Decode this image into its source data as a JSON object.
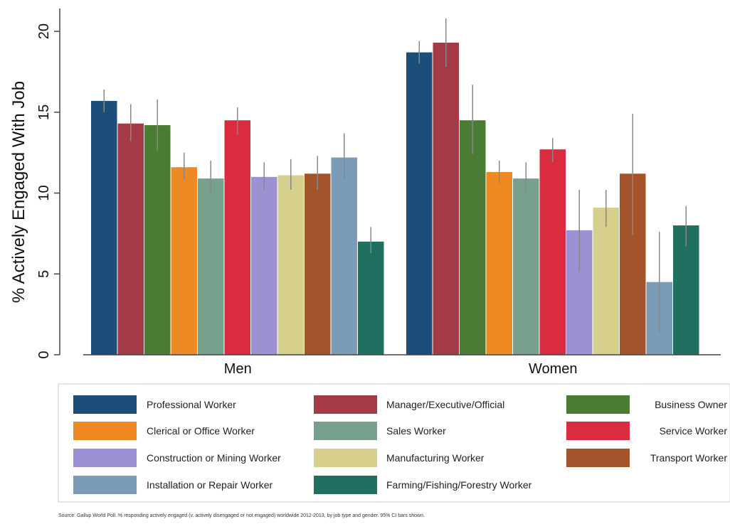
{
  "chart_data": {
    "type": "bar",
    "categories": [
      "Men",
      "Women"
    ],
    "ylabel": "% Actively Engaged With Job",
    "xlabel": "",
    "ylim": [
      0,
      21.5
    ],
    "yticks": [
      0,
      5,
      10,
      15,
      20
    ],
    "grid": false,
    "legend_position": "bottom",
    "error_bars": "95% CI",
    "series": [
      {
        "name": "Professional Worker",
        "color": "#1c4e7a",
        "values": [
          15.7,
          18.7
        ],
        "ci_low": [
          15.0,
          18.0
        ],
        "ci_high": [
          16.4,
          19.4
        ]
      },
      {
        "name": "Manager/Executive/Official",
        "color": "#a33a46",
        "values": [
          14.3,
          19.3
        ],
        "ci_low": [
          13.2,
          17.8
        ],
        "ci_high": [
          15.5,
          20.8
        ]
      },
      {
        "name": "Business Owner",
        "color": "#4a7c34",
        "values": [
          14.2,
          14.5
        ],
        "ci_low": [
          12.6,
          12.4
        ],
        "ci_high": [
          15.8,
          16.7
        ]
      },
      {
        "name": "Clerical or Office Worker",
        "color": "#ef8a22",
        "values": [
          11.6,
          11.3
        ],
        "ci_low": [
          10.8,
          10.6
        ],
        "ci_high": [
          12.5,
          12.0
        ]
      },
      {
        "name": "Sales Worker",
        "color": "#76a18c",
        "values": [
          10.9,
          10.9
        ],
        "ci_low": [
          9.9,
          10.0
        ],
        "ci_high": [
          12.0,
          11.9
        ]
      },
      {
        "name": "Service Worker",
        "color": "#d92c3f",
        "values": [
          14.5,
          12.7
        ],
        "ci_low": [
          13.6,
          11.9
        ],
        "ci_high": [
          15.3,
          13.4
        ]
      },
      {
        "name": "Construction or Mining Worker",
        "color": "#9d91d3",
        "values": [
          11.0,
          7.7
        ],
        "ci_low": [
          10.2,
          5.2
        ],
        "ci_high": [
          11.9,
          10.2
        ]
      },
      {
        "name": "Manufacturing Worker",
        "color": "#d7d08c",
        "values": [
          11.1,
          9.1
        ],
        "ci_low": [
          10.2,
          7.9
        ],
        "ci_high": [
          12.1,
          10.2
        ]
      },
      {
        "name": "Transport Worker",
        "color": "#a4542b",
        "values": [
          11.2,
          11.2
        ],
        "ci_low": [
          10.2,
          7.4
        ],
        "ci_high": [
          12.3,
          14.9
        ]
      },
      {
        "name": "Installation or Repair Worker",
        "color": "#7b9cb8",
        "values": [
          12.2,
          4.5
        ],
        "ci_low": [
          10.8,
          1.4
        ],
        "ci_high": [
          13.7,
          7.6
        ]
      },
      {
        "name": "Farming/Fishing/Forestry Worker",
        "color": "#1f7060",
        "values": [
          7.0,
          8.0
        ],
        "ci_low": [
          6.3,
          6.7
        ],
        "ci_high": [
          7.9,
          9.2
        ]
      }
    ],
    "source": "Source: Gallup World Poll. % responding actively engaged (v. actively disengaged or not engaged) worldwide 2012-2013, by job type and gender. 95% CI bars shown."
  }
}
